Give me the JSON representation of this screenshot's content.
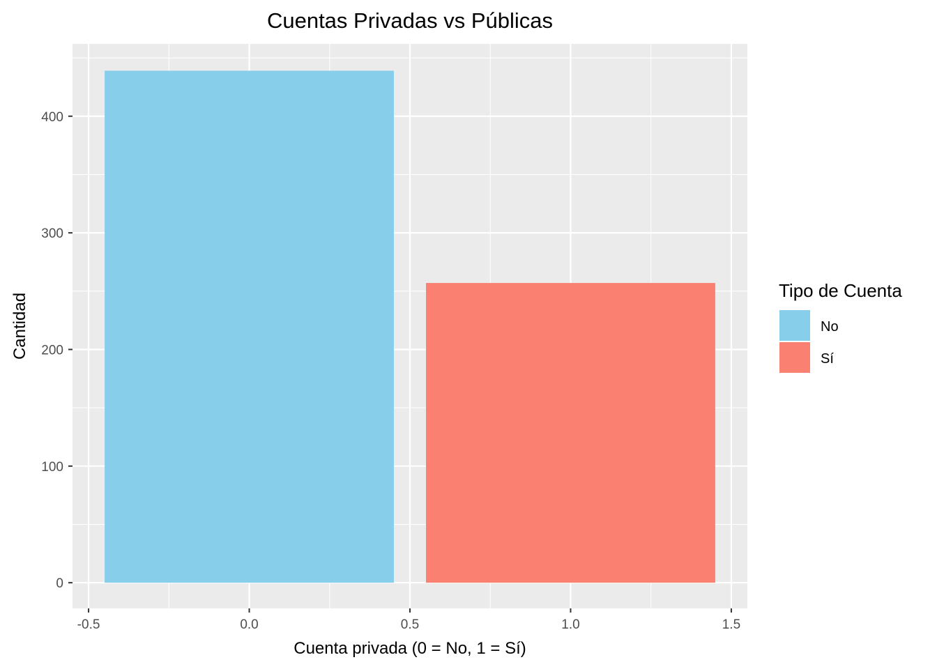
{
  "chart_data": {
    "type": "bar",
    "title": "Cuentas Privadas vs Públicas",
    "xlabel": "Cuenta privada (0 = No, 1 = Sí)",
    "ylabel": "Cantidad",
    "x": [
      0,
      1
    ],
    "values": [
      439,
      257
    ],
    "series_labels": [
      "No",
      "Sí"
    ],
    "bar_width": 0.9,
    "xlim": [
      -0.55,
      1.55
    ],
    "ylim": [
      -22,
      462
    ],
    "xticks": [
      -0.5,
      0.0,
      0.5,
      1.0,
      1.5
    ],
    "xtick_labels": [
      "-0.5",
      "0.0",
      "0.5",
      "1.0",
      "1.5"
    ],
    "yticks": [
      0,
      100,
      200,
      300,
      400
    ],
    "ytick_labels": [
      "0",
      "100",
      "200",
      "300",
      "400"
    ],
    "grid": true,
    "colors": [
      "#87CEEB",
      "#FA8072"
    ],
    "panel_background": "#EBEBEB",
    "legend": {
      "title": "Tipo de Cuenta",
      "position": "right",
      "items": [
        {
          "label": "No",
          "color": "#87CEEB"
        },
        {
          "label": "Sí",
          "color": "#FA8072"
        }
      ]
    }
  }
}
